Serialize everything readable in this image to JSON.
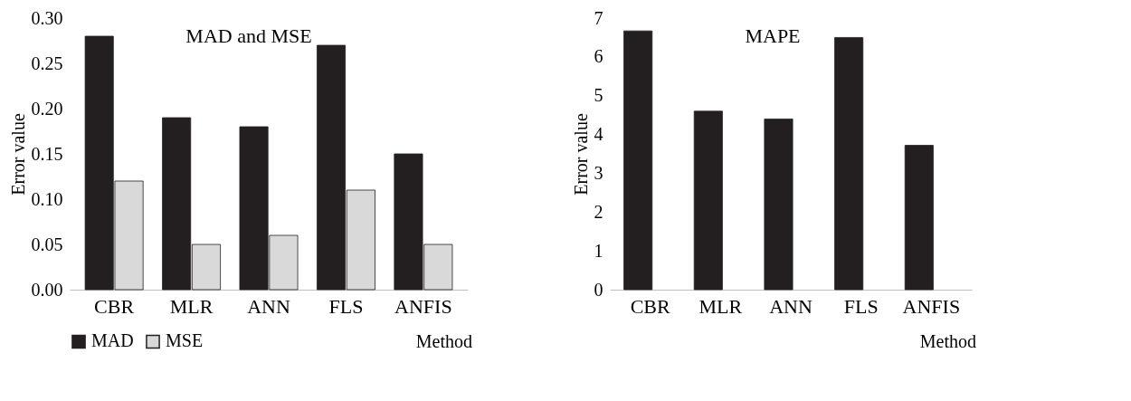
{
  "chart_data": [
    {
      "type": "bar",
      "title": "MAD and MSE",
      "xlabel": "Method",
      "ylabel": "Error value",
      "categories": [
        "CBR",
        "MLR",
        "ANN",
        "FLS",
        "ANFIS"
      ],
      "series": [
        {
          "name": "MAD",
          "color": "#231f20",
          "values": [
            0.28,
            0.19,
            0.18,
            0.27,
            0.15
          ]
        },
        {
          "name": "MSE",
          "color": "#d9d9d9",
          "values": [
            0.12,
            0.05,
            0.06,
            0.11,
            0.05
          ]
        }
      ],
      "ylim": [
        0,
        0.3
      ],
      "yticks": [
        {
          "value": 0,
          "label": "0.00"
        },
        {
          "value": 0.05,
          "label": "0.05"
        },
        {
          "value": 0.1,
          "label": "0.10"
        },
        {
          "value": 0.15,
          "label": "0.15"
        },
        {
          "value": 0.2,
          "label": "0.20"
        },
        {
          "value": 0.25,
          "label": "0.25"
        },
        {
          "value": 0.3,
          "label": "0.30"
        }
      ],
      "grid": false,
      "legend": "bottom"
    },
    {
      "type": "bar",
      "title": "MAPE",
      "xlabel": "Method",
      "ylabel": "Error value",
      "categories": [
        "CBR",
        "MLR",
        "ANN",
        "FLS",
        "ANFIS"
      ],
      "values": [
        6.67,
        4.6,
        4.4,
        6.5,
        3.72
      ],
      "color": "#231f20",
      "ylim": [
        0,
        7
      ],
      "yticks": [
        0,
        1,
        2,
        3,
        4,
        5,
        6,
        7
      ],
      "grid": false
    }
  ]
}
